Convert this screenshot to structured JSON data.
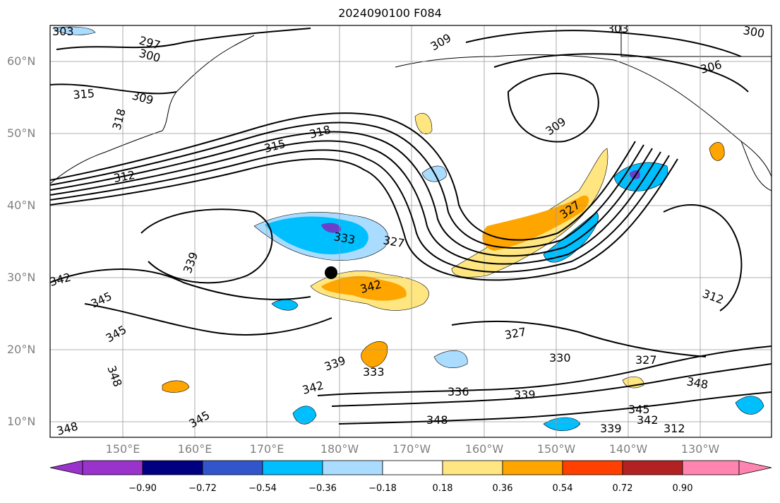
{
  "title": "2024090100 F084",
  "lat_labels": [
    "60°N",
    "50°N",
    "40°N",
    "30°N",
    "20°N",
    "10°N"
  ],
  "lon_labels": [
    "150°E",
    "160°E",
    "170°E",
    "180°W",
    "170°W",
    "160°W",
    "150°W",
    "140°W",
    "130°W"
  ],
  "contour_labels": [
    "303",
    "297",
    "300",
    "315",
    "309",
    "318",
    "312",
    "315",
    "318",
    "309",
    "303",
    "300",
    "306",
    "309",
    "312",
    "333",
    "327",
    "339",
    "342",
    "345",
    "342",
    "345",
    "348",
    "339",
    "333",
    "342",
    "336",
    "339",
    "327",
    "330",
    "327",
    "348",
    "345",
    "342",
    "339",
    "348",
    "345",
    "348",
    "312",
    "327"
  ],
  "colorbar": {
    "ticks": [
      "−0.90",
      "−0.72",
      "−0.54",
      "−0.36",
      "−0.18",
      "0.18",
      "0.36",
      "0.54",
      "0.72",
      "0.90"
    ],
    "colors": [
      "#9933cc",
      "#000080",
      "#3355cc",
      "#00bfff",
      "#aadcff",
      "#ffffff",
      "#ffe680",
      "#ffa500",
      "#ff4000",
      "#b22222",
      "#ff85b0"
    ]
  },
  "shading_colors": {
    "positive_light": "#ffe680",
    "positive_mid": "#ffa500",
    "negative_light": "#aadcff",
    "negative_mid": "#00bfff",
    "negative_dark": "#3355cc",
    "negative_deep": "#6a3fc9"
  },
  "marker": {
    "name": "storm-center",
    "color": "#000000"
  }
}
